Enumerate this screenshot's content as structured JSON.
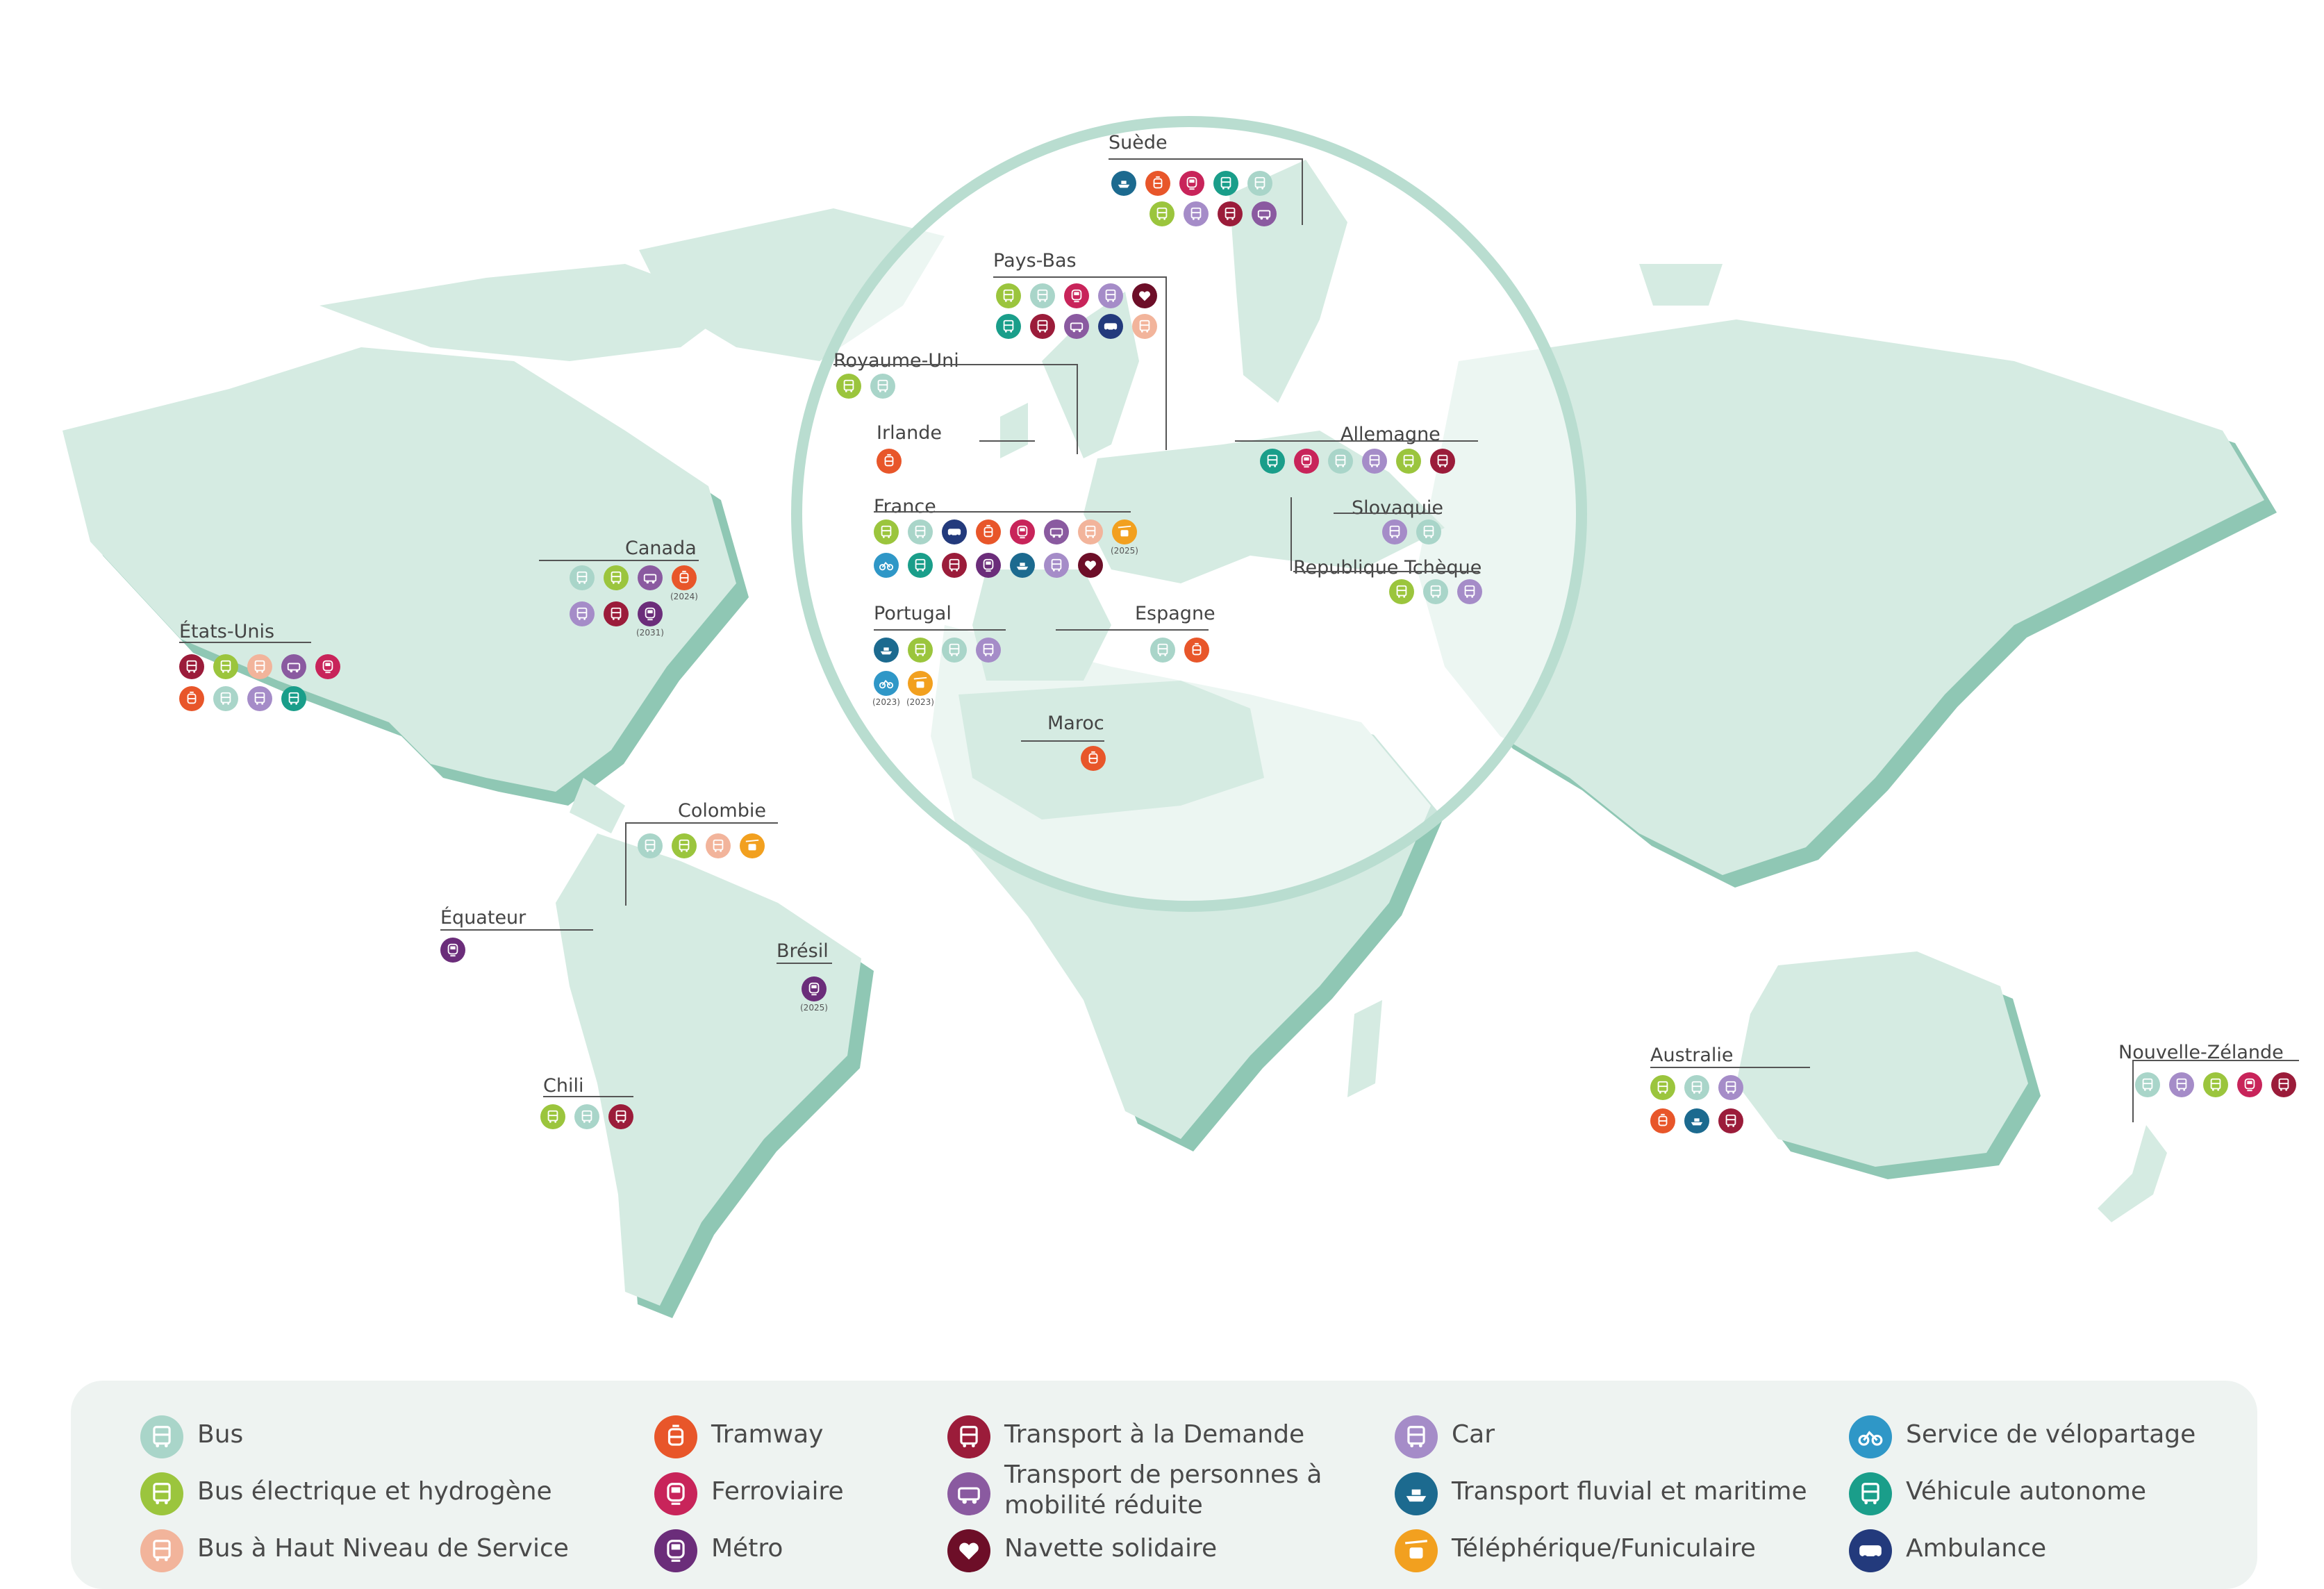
{
  "modes": {
    "bus": {
      "label": "Bus",
      "color": "#a9d5c9",
      "icon": "bus-icon"
    },
    "bus_elec": {
      "label": "Bus électrique et hydrogène",
      "color": "#9bc53d",
      "icon": "electric-bus-icon"
    },
    "bhns": {
      "label": "Bus à Haut Niveau de Service",
      "color": "#f2b49b",
      "icon": "bhns-bus-icon"
    },
    "tram": {
      "label": "Tramway",
      "color": "#e8562a",
      "icon": "tram-icon"
    },
    "rail": {
      "label": "Ferroviaire",
      "color": "#c8245a",
      "icon": "train-icon"
    },
    "metro": {
      "label": "Métro",
      "color": "#6b2d7a",
      "icon": "metro-icon"
    },
    "tad": {
      "label": "Transport à la Demande",
      "color": "#9b1c3a",
      "icon": "on-demand-bus-icon"
    },
    "pmr": {
      "label": "Transport de personnes à mobilité réduite",
      "color": "#8a5aa0",
      "icon": "reduced-mobility-van-icon"
    },
    "solid": {
      "label": "Navette solidaire",
      "color": "#6d0e28",
      "icon": "heart-hands-icon"
    },
    "car": {
      "label": "Car",
      "color": "#a58cc8",
      "icon": "coach-icon"
    },
    "boat": {
      "label": "Transport fluvial et maritime",
      "color": "#1c6a8f",
      "icon": "boat-icon"
    },
    "cable": {
      "label": "Téléphérique/Funiculaire",
      "color": "#f2a01f",
      "icon": "cable-car-icon"
    },
    "bike": {
      "label": "Service de vélopartage",
      "color": "#2f97c7",
      "icon": "bike-icon"
    },
    "auto": {
      "label": "Véhicule autonome",
      "color": "#1a9e8a",
      "icon": "autonomous-vehicle-icon"
    },
    "amb": {
      "label": "Ambulance",
      "color": "#233a7c",
      "icon": "ambulance-icon"
    }
  },
  "countries": [
    {
      "id": "suede",
      "name": "Suède",
      "modes": [
        [
          "boat",
          null
        ],
        [
          "tram",
          null
        ],
        [
          "rail",
          null
        ],
        [
          "auto",
          null
        ],
        [
          "bus",
          null
        ],
        [
          "bus_elec",
          null
        ],
        [
          "car",
          null
        ],
        [
          "tad",
          null
        ],
        [
          "pmr",
          null
        ]
      ]
    },
    {
      "id": "pays-bas",
      "name": "Pays-Bas",
      "modes": [
        [
          "bus_elec",
          null
        ],
        [
          "bus",
          null
        ],
        [
          "rail",
          null
        ],
        [
          "car",
          null
        ],
        [
          "solid",
          null
        ],
        [
          "auto",
          null
        ],
        [
          "tad",
          null
        ],
        [
          "pmr",
          null
        ],
        [
          "amb",
          null
        ],
        [
          "bhns",
          null
        ]
      ]
    },
    {
      "id": "royaume-uni",
      "name": "Royaume-Uni",
      "modes": [
        [
          "bus_elec",
          null
        ],
        [
          "bus",
          null
        ]
      ]
    },
    {
      "id": "irlande",
      "name": "Irlande",
      "modes": [
        [
          "tram",
          null
        ]
      ]
    },
    {
      "id": "allemagne",
      "name": "Allemagne",
      "modes": [
        [
          "auto",
          null
        ],
        [
          "rail",
          null
        ],
        [
          "bus",
          null
        ],
        [
          "car",
          null
        ],
        [
          "bus_elec",
          null
        ],
        [
          "tad",
          null
        ]
      ]
    },
    {
      "id": "slovaquie",
      "name": "Slovaquie",
      "modes": [
        [
          "car",
          null
        ],
        [
          "bus",
          null
        ]
      ]
    },
    {
      "id": "republique-tcheque",
      "name": "Republique Tchèque",
      "modes": [
        [
          "bus_elec",
          null
        ],
        [
          "bus",
          null
        ],
        [
          "car",
          null
        ]
      ]
    },
    {
      "id": "france",
      "name": "France",
      "modes": [
        [
          "bus_elec",
          null
        ],
        [
          "bus",
          null
        ],
        [
          "amb",
          null
        ],
        [
          "tram",
          null
        ],
        [
          "rail",
          null
        ],
        [
          "pmr",
          null
        ],
        [
          "bhns",
          null
        ],
        [
          "cable",
          "(2025)"
        ],
        [
          "bike",
          null
        ],
        [
          "auto",
          null
        ],
        [
          "tad",
          null
        ],
        [
          "metro",
          null
        ],
        [
          "boat",
          null
        ],
        [
          "car",
          null
        ],
        [
          "solid",
          null
        ]
      ]
    },
    {
      "id": "portugal",
      "name": "Portugal",
      "modes": [
        [
          "boat",
          null
        ],
        [
          "bus_elec",
          null
        ],
        [
          "bus",
          null
        ],
        [
          "car",
          null
        ],
        [
          "bike",
          "(2023)"
        ],
        [
          "cable",
          "(2023)"
        ]
      ]
    },
    {
      "id": "espagne",
      "name": "Espagne",
      "modes": [
        [
          "bus",
          null
        ],
        [
          "tram",
          null
        ]
      ]
    },
    {
      "id": "maroc",
      "name": "Maroc",
      "modes": [
        [
          "tram",
          null
        ]
      ]
    },
    {
      "id": "canada",
      "name": "Canada",
      "modes": [
        [
          "bus",
          null
        ],
        [
          "bus_elec",
          null
        ],
        [
          "pmr",
          null
        ],
        [
          "tram",
          "(2024)"
        ],
        [
          "car",
          null
        ],
        [
          "tad",
          null
        ],
        [
          "metro",
          "(2031)"
        ]
      ]
    },
    {
      "id": "etats-unis",
      "name": "États-Unis",
      "modes": [
        [
          "tad",
          null
        ],
        [
          "bus_elec",
          null
        ],
        [
          "bhns",
          null
        ],
        [
          "pmr",
          null
        ],
        [
          "rail",
          null
        ],
        [
          "tram",
          null
        ],
        [
          "bus",
          null
        ],
        [
          "car",
          null
        ],
        [
          "auto",
          null
        ]
      ]
    },
    {
      "id": "colombie",
      "name": "Colombie",
      "modes": [
        [
          "bus",
          null
        ],
        [
          "bus_elec",
          null
        ],
        [
          "bhns",
          null
        ],
        [
          "cable",
          null
        ]
      ]
    },
    {
      "id": "equateur",
      "name": "Équateur",
      "modes": [
        [
          "metro",
          null
        ]
      ]
    },
    {
      "id": "bresil",
      "name": "Brésil",
      "modes": [
        [
          "metro",
          "(2025)"
        ]
      ]
    },
    {
      "id": "chili",
      "name": "Chili",
      "modes": [
        [
          "bus_elec",
          null
        ],
        [
          "bus",
          null
        ],
        [
          "tad",
          null
        ]
      ]
    },
    {
      "id": "australie",
      "name": "Australie",
      "modes": [
        [
          "bus_elec",
          null
        ],
        [
          "bus",
          null
        ],
        [
          "car",
          null
        ],
        [
          "tram",
          null
        ],
        [
          "boat",
          null
        ],
        [
          "tad",
          null
        ]
      ]
    },
    {
      "id": "nouvelle-zelande",
      "name": "Nouvelle-Zélande",
      "modes": [
        [
          "bus",
          null
        ],
        [
          "car",
          null
        ],
        [
          "bus_elec",
          null
        ],
        [
          "rail",
          null
        ],
        [
          "tad",
          null
        ]
      ]
    }
  ],
  "legend": [
    [
      "bus",
      "bus_elec",
      "bhns"
    ],
    [
      "tram",
      "rail",
      "metro"
    ],
    [
      "tad",
      "pmr",
      "solid"
    ],
    [
      "car",
      "boat",
      "cable"
    ],
    [
      "bike",
      "auto",
      "amb"
    ]
  ]
}
